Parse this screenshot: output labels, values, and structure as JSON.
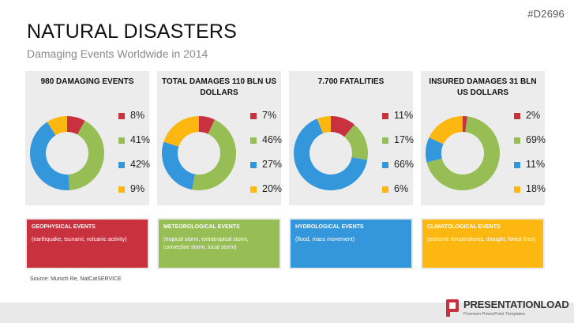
{
  "header": {
    "code": "#D2696",
    "title": "NATURAL DISASTERS",
    "subtitle": "Damaging Events Worldwide in 2014"
  },
  "colors": {
    "geophysical": "#c8323f",
    "meteorological": "#97bd55",
    "hydrological": "#3497dc",
    "climatological": "#fcb811",
    "panel_bg": "#ececec"
  },
  "chart_data": [
    {
      "type": "pie",
      "title": "980 DAMAGING EVENTS",
      "categories": [
        "Geophysical",
        "Meteorological",
        "Hydrological",
        "Climatological"
      ],
      "values": [
        8,
        41,
        42,
        9
      ],
      "labels": [
        "8%",
        "41%",
        "42%",
        "9%"
      ]
    },
    {
      "type": "pie",
      "title": "TOTAL DAMAGES 110 BLN US DOLLARS",
      "categories": [
        "Geophysical",
        "Meteorological",
        "Hydrological",
        "Climatological"
      ],
      "values": [
        7,
        46,
        27,
        20
      ],
      "labels": [
        "7%",
        "46%",
        "27%",
        "20%"
      ]
    },
    {
      "type": "pie",
      "title": "7.700 FATALITIES",
      "categories": [
        "Geophysical",
        "Meteorological",
        "Hydrological",
        "Climatological"
      ],
      "values": [
        11,
        17,
        66,
        6
      ],
      "labels": [
        "11%",
        "17%",
        "66%",
        "6%"
      ]
    },
    {
      "type": "pie",
      "title": "INSURED DAMAGES 31 BLN US DOLLARS",
      "categories": [
        "Geophysical",
        "Meteorological",
        "Hydrological",
        "Climatological"
      ],
      "values": [
        2,
        69,
        11,
        18
      ],
      "labels": [
        "2%",
        "69%",
        "11%",
        "18%"
      ]
    }
  ],
  "categories": [
    {
      "title": "GEOPHYSICAL EVENTS",
      "desc": "(earthquake, tsunami, volcanic activity)",
      "color": "#c8323f"
    },
    {
      "title": "METEOROLOGICAL EVENTS",
      "desc": "(tropical storm, extratropical storm, convective storm, local storm)",
      "color": "#97bd55"
    },
    {
      "title": "HYDROLOGICAL EVENTS",
      "desc": "(flood, mass movement)",
      "color": "#3497dc"
    },
    {
      "title": "CLIMATOLOGICAL EVENTS",
      "desc": "(extreme temperatures, drought, forest fires)",
      "color": "#fcb811"
    }
  ],
  "source": "Source: Munich Re, NatCatSERVICE",
  "brand": {
    "name": "PRESENTATIONLOAD",
    "tagline": "Premium PowerPoint Templates"
  }
}
